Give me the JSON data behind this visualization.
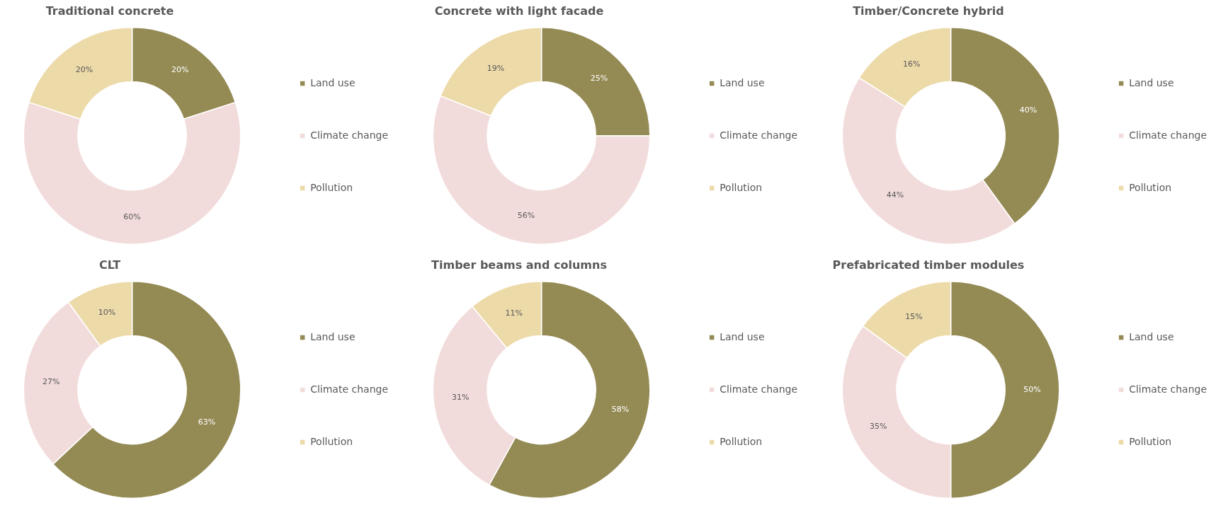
{
  "chart_data": [
    {
      "type": "donut",
      "title": "Traditional concrete",
      "categories": [
        "Land use",
        "Climate change",
        "Pollution"
      ],
      "values": [
        20,
        60,
        20
      ],
      "value_labels": [
        "20%",
        "60%",
        "20%"
      ],
      "colors": [
        "#948a54",
        "#f2dcdb",
        "#eddaa9"
      ],
      "legend": "right"
    },
    {
      "type": "donut",
      "title": "Concrete with light facade",
      "categories": [
        "Land use",
        "Climate change",
        "Pollution"
      ],
      "values": [
        25,
        56,
        19
      ],
      "value_labels": [
        "25%",
        "56%",
        "19%"
      ],
      "colors": [
        "#948a54",
        "#f2dcdb",
        "#eddaa9"
      ],
      "legend": "right"
    },
    {
      "type": "donut",
      "title": "Timber/Concrete hybrid",
      "categories": [
        "Land use",
        "Climate change",
        "Pollution"
      ],
      "values": [
        40,
        44,
        16
      ],
      "value_labels": [
        "40%",
        "44%",
        "16%"
      ],
      "colors": [
        "#948a54",
        "#f2dcdb",
        "#eddaa9"
      ],
      "legend": "right"
    },
    {
      "type": "donut",
      "title": "CLT",
      "categories": [
        "Land use",
        "Climate change",
        "Pollution"
      ],
      "values": [
        63,
        27,
        10
      ],
      "value_labels": [
        "63%",
        "27%",
        "10%"
      ],
      "colors": [
        "#948a54",
        "#f2dcdb",
        "#eddaa9"
      ],
      "legend": "right"
    },
    {
      "type": "donut",
      "title": "Timber beams and columns",
      "categories": [
        "Land use",
        "Climate change",
        "Pollution"
      ],
      "values": [
        58,
        31,
        11
      ],
      "value_labels": [
        "58%",
        "31%",
        "11%"
      ],
      "colors": [
        "#948a54",
        "#f2dcdb",
        "#eddaa9"
      ],
      "legend": "right"
    },
    {
      "type": "donut",
      "title": "Prefabricated timber modules",
      "categories": [
        "Land use",
        "Climate change",
        "Pollution"
      ],
      "values": [
        50,
        35,
        15
      ],
      "value_labels": [
        "50%",
        "35%",
        "15%"
      ],
      "colors": [
        "#948a54",
        "#f2dcdb",
        "#eddaa9"
      ],
      "legend": "right"
    }
  ]
}
